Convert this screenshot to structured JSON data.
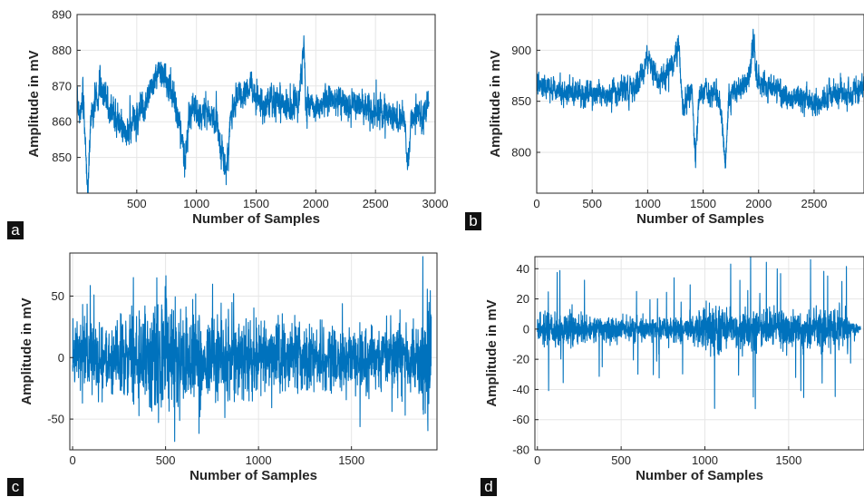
{
  "colors": {
    "line": "#0072bd",
    "grid": "#e6e6e6",
    "axis": "#262626",
    "badge": "#111111"
  },
  "chart_data": [
    {
      "panel": "a",
      "type": "line",
      "xlabel": "Number of Samples",
      "ylabel": "Amplitude in mV",
      "xlim": [
        0,
        3000
      ],
      "ylim": [
        840,
        890
      ],
      "xticks": [
        500,
        1000,
        1500,
        2000,
        2500,
        3000
      ],
      "yticks": [
        850,
        860,
        870,
        880,
        890
      ],
      "grid": true,
      "n_samples": 2950,
      "keypoints": [
        [
          0,
          866
        ],
        [
          30,
          862
        ],
        [
          50,
          868
        ],
        [
          70,
          852
        ],
        [
          90,
          841
        ],
        [
          110,
          858
        ],
        [
          150,
          866
        ],
        [
          200,
          869
        ],
        [
          260,
          865
        ],
        [
          320,
          861
        ],
        [
          380,
          859
        ],
        [
          440,
          858
        ],
        [
          500,
          860
        ],
        [
          560,
          864
        ],
        [
          620,
          870
        ],
        [
          680,
          874
        ],
        [
          740,
          872
        ],
        [
          800,
          868
        ],
        [
          850,
          861
        ],
        [
          900,
          849
        ],
        [
          940,
          862
        ],
        [
          1000,
          863
        ],
        [
          1060,
          862
        ],
        [
          1120,
          863
        ],
        [
          1170,
          860
        ],
        [
          1210,
          853
        ],
        [
          1250,
          846
        ],
        [
          1290,
          862
        ],
        [
          1330,
          866
        ],
        [
          1400,
          868
        ],
        [
          1450,
          871
        ],
        [
          1500,
          866
        ],
        [
          1560,
          864
        ],
        [
          1620,
          866
        ],
        [
          1680,
          866
        ],
        [
          1740,
          865
        ],
        [
          1800,
          864
        ],
        [
          1860,
          866
        ],
        [
          1880,
          874
        ],
        [
          1900,
          884
        ],
        [
          1915,
          866
        ],
        [
          1960,
          865
        ],
        [
          2020,
          864
        ],
        [
          2080,
          866
        ],
        [
          2140,
          866
        ],
        [
          2200,
          866
        ],
        [
          2260,
          865
        ],
        [
          2320,
          865
        ],
        [
          2400,
          864
        ],
        [
          2480,
          864
        ],
        [
          2560,
          863
        ],
        [
          2620,
          862
        ],
        [
          2680,
          861
        ],
        [
          2740,
          861
        ],
        [
          2770,
          848
        ],
        [
          2800,
          860
        ],
        [
          2850,
          862
        ],
        [
          2900,
          862
        ],
        [
          2950,
          866
        ]
      ],
      "noise": 2.6
    },
    {
      "panel": "b",
      "type": "line",
      "xlabel": "Number of Samples",
      "ylabel": "Amplitude in mV",
      "xlim": [
        0,
        2950
      ],
      "ylim": [
        760,
        935
      ],
      "xticks": [
        0,
        500,
        1000,
        1500,
        2000,
        2500
      ],
      "yticks": [
        800,
        850,
        900
      ],
      "grid": true,
      "n_samples": 2950,
      "keypoints": [
        [
          0,
          865
        ],
        [
          100,
          866
        ],
        [
          200,
          860
        ],
        [
          300,
          857
        ],
        [
          400,
          858
        ],
        [
          500,
          860
        ],
        [
          600,
          857
        ],
        [
          700,
          859
        ],
        [
          800,
          860
        ],
        [
          900,
          866
        ],
        [
          960,
          880
        ],
        [
          1000,
          893
        ],
        [
          1040,
          880
        ],
        [
          1100,
          870
        ],
        [
          1150,
          876
        ],
        [
          1200,
          884
        ],
        [
          1240,
          890
        ],
        [
          1280,
          905
        ],
        [
          1300,
          865
        ],
        [
          1320,
          840
        ],
        [
          1350,
          852
        ],
        [
          1400,
          860
        ],
        [
          1430,
          790
        ],
        [
          1460,
          850
        ],
        [
          1520,
          860
        ],
        [
          1580,
          856
        ],
        [
          1640,
          856
        ],
        [
          1670,
          832
        ],
        [
          1700,
          785
        ],
        [
          1730,
          850
        ],
        [
          1800,
          862
        ],
        [
          1880,
          866
        ],
        [
          1920,
          880
        ],
        [
          1950,
          912
        ],
        [
          1980,
          875
        ],
        [
          2060,
          862
        ],
        [
          2140,
          862
        ],
        [
          2220,
          858
        ],
        [
          2300,
          853
        ],
        [
          2400,
          855
        ],
        [
          2480,
          850
        ],
        [
          2560,
          848
        ],
        [
          2640,
          855
        ],
        [
          2720,
          858
        ],
        [
          2800,
          857
        ],
        [
          2880,
          860
        ],
        [
          2950,
          862
        ]
      ],
      "noise": 7
    },
    {
      "panel": "c",
      "type": "line",
      "xlabel": "Number of Samples",
      "ylabel": "Amplitude in mV",
      "xlim": [
        -15,
        1960
      ],
      "ylim": [
        -75,
        85
      ],
      "xticks": [
        0,
        500,
        1000,
        1500
      ],
      "yticks": [
        -50,
        0,
        50
      ],
      "grid": true,
      "n_samples": 1930,
      "noise_pattern": "uniform",
      "amplitude_envelope": [
        [
          0,
          16
        ],
        [
          200,
          18
        ],
        [
          400,
          24
        ],
        [
          500,
          30
        ],
        [
          700,
          20
        ],
        [
          1000,
          18
        ],
        [
          1300,
          17
        ],
        [
          1600,
          16
        ],
        [
          1880,
          18
        ],
        [
          1925,
          40
        ],
        [
          1930,
          40
        ]
      ]
    },
    {
      "panel": "d",
      "type": "line",
      "xlabel": "Number of Samples",
      "ylabel": "Amplitude in mV",
      "xlim": [
        -15,
        1950
      ],
      "ylim": [
        -80,
        48
      ],
      "xticks": [
        0,
        500,
        1000,
        1500
      ],
      "yticks": [
        -80,
        -60,
        -40,
        -20,
        0,
        20,
        40
      ],
      "grid": true,
      "n_samples": 1930,
      "noise_pattern": "spiky",
      "amplitude_envelope": [
        [
          0,
          10
        ],
        [
          400,
          7
        ],
        [
          900,
          8
        ],
        [
          1000,
          13
        ],
        [
          1300,
          12
        ],
        [
          1600,
          12
        ],
        [
          1850,
          11
        ],
        [
          1880,
          4
        ],
        [
          1930,
          2
        ]
      ]
    }
  ]
}
